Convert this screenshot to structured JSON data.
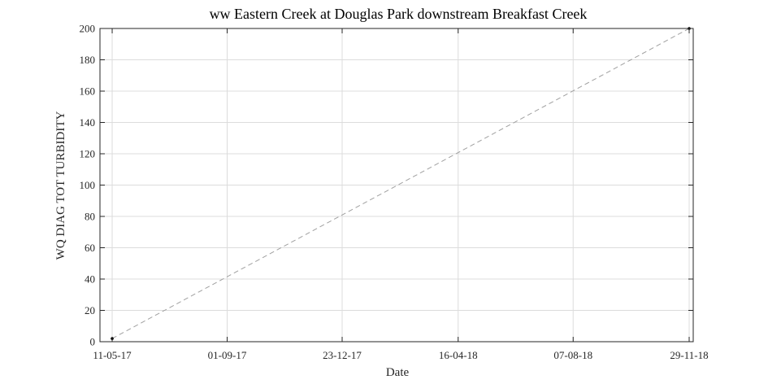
{
  "chart_data": {
    "type": "line",
    "title": "ww Eastern Creek at Douglas Park downstream Breakfast Creek",
    "xlabel": "Date",
    "ylabel": "WQ DIAG TOT TURBIDITY",
    "x_tick_labels": [
      "11-05-17",
      "01-09-17",
      "23-12-17",
      "16-04-18",
      "07-08-18",
      "29-11-18"
    ],
    "x_tick_dates": [
      "2017-05-11",
      "2017-09-01",
      "2017-12-23",
      "2018-04-16",
      "2018-08-07",
      "2018-11-29"
    ],
    "xlim": [
      "2017-04-29",
      "2018-12-03"
    ],
    "y_ticks": [
      0,
      20,
      40,
      60,
      80,
      100,
      120,
      140,
      160,
      180,
      200
    ],
    "ylim": [
      0,
      200
    ],
    "grid": true,
    "series": [
      {
        "line_style": "dashed",
        "color": "#a0a0a0",
        "marker_color": "#000000",
        "points": [
          {
            "x": "2017-05-11",
            "y": 2
          },
          {
            "x": "2018-11-29",
            "y": 200
          }
        ]
      }
    ]
  }
}
